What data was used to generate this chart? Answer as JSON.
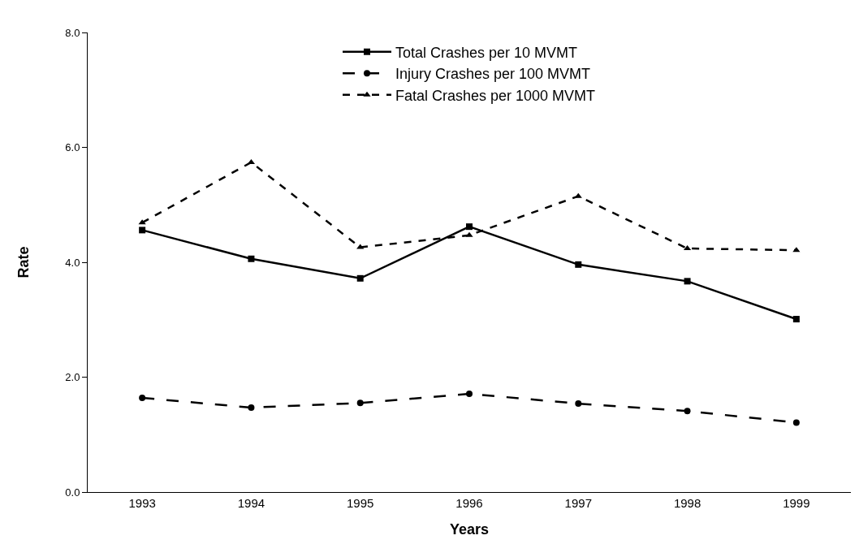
{
  "chart_data": {
    "type": "line",
    "xlabel": "Years",
    "ylabel": "Rate",
    "categories": [
      "1993",
      "1994",
      "1995",
      "1996",
      "1997",
      "1998",
      "1999"
    ],
    "ylim": [
      0,
      8
    ],
    "yticks": [
      {
        "value": 0,
        "label": "0.0"
      },
      {
        "value": 2,
        "label": "2.0"
      },
      {
        "value": 4,
        "label": "4.0"
      },
      {
        "value": 6,
        "label": "6.0"
      },
      {
        "value": 8,
        "label": "8.0"
      }
    ],
    "grid": false,
    "legend": "top",
    "series": [
      {
        "name": "Total Crashes per 10 MVMT",
        "color": "#000000",
        "marker": "square",
        "line_style": "solid",
        "values": [
          4.56,
          4.06,
          3.72,
          4.62,
          3.96,
          3.67,
          3.01
        ]
      },
      {
        "name": "Injury Crashes per 100 MVMT",
        "color": "#000000",
        "marker": "circle",
        "line_style": "dashed",
        "values": [
          1.64,
          1.47,
          1.55,
          1.71,
          1.54,
          1.41,
          1.21
        ]
      },
      {
        "name": "Fatal Crashes per 1000 MVMT",
        "color": "#000000",
        "marker": "triangle",
        "line_style": "dotted",
        "values": [
          4.69,
          5.74,
          4.26,
          4.47,
          5.15,
          4.24,
          4.21
        ]
      }
    ]
  }
}
